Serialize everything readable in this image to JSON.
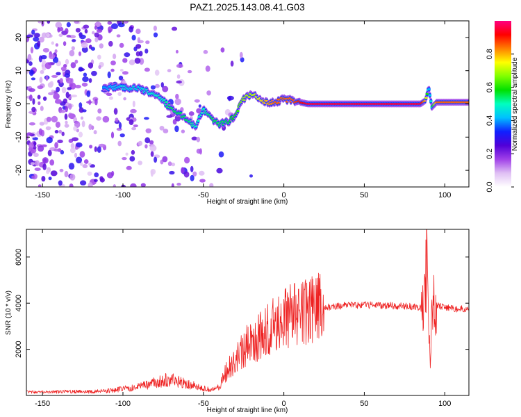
{
  "title": "PAZ1.2025.143.08.41.G03",
  "chart_data": [
    {
      "type": "heatmap",
      "xlabel": "Height of straight line (km)",
      "ylabel": "Frequency (Hz)",
      "xlim": [
        -160,
        115
      ],
      "ylim": [
        -25,
        25
      ],
      "xticks": [
        -150,
        -100,
        -50,
        0,
        50,
        100
      ],
      "yticks": [
        -20,
        -10,
        0,
        10,
        20
      ],
      "colorbar": {
        "label": "Normalized spectral amplitude",
        "range": [
          0,
          1
        ],
        "ticks": [
          0.0,
          0.2,
          0.4,
          0.6,
          0.8
        ],
        "colormap": [
          "#ffffff",
          "#e0c0f4",
          "#a040e8",
          "#5000d8",
          "#1020ff",
          "#00c0ff",
          "#00ffc0",
          "#00e000",
          "#80ff00",
          "#ffff00",
          "#ff8000",
          "#ff0000",
          "#ff0080"
        ]
      },
      "ridge": {
        "x": [
          -110,
          -100,
          -90,
          -80,
          -75,
          -70,
          -65,
          -60,
          -55,
          -50,
          -45,
          -40,
          -35,
          -30,
          -27,
          -24,
          -20,
          -15,
          -10,
          -5,
          0,
          5,
          10,
          15,
          20,
          50,
          85,
          88,
          90,
          92,
          95,
          115
        ],
        "y": [
          5,
          5,
          4.5,
          3,
          1,
          -1.5,
          -3,
          -4.5,
          -7,
          -1.5,
          -4.5,
          -6,
          -5.5,
          -3.5,
          0.5,
          2,
          3,
          1.5,
          0.5,
          0.5,
          1.5,
          1,
          0.5,
          0,
          0,
          0,
          0,
          1,
          5,
          -1,
          0.5,
          0.5
        ],
        "amplitude": [
          0.4,
          0.45,
          0.45,
          0.5,
          0.5,
          0.55,
          0.55,
          0.55,
          0.5,
          0.5,
          0.55,
          0.55,
          0.55,
          0.6,
          0.65,
          0.7,
          0.7,
          0.75,
          0.8,
          0.85,
          0.85,
          0.85,
          0.9,
          0.95,
          0.95,
          0.95,
          0.95,
          0.8,
          0.4,
          0.5,
          0.85,
          0.85
        ]
      }
    },
    {
      "type": "line",
      "xlabel": "Height of straight line (km)",
      "ylabel": "SNR (10 * v/v)",
      "xlim": [
        -160,
        115
      ],
      "ylim": [
        0,
        7200
      ],
      "xticks": [
        -150,
        -100,
        -50,
        0,
        50,
        100
      ],
      "yticks": [
        2000,
        4000,
        6000
      ],
      "series": [
        {
          "color": "#ee2222",
          "x": [
            -160,
            -150,
            -140,
            -130,
            -120,
            -110,
            -100,
            -90,
            -80,
            -75,
            -70,
            -65,
            -60,
            -55,
            -50,
            -45,
            -40,
            -38,
            -36,
            -34,
            -32,
            -30,
            -28,
            -26,
            -24,
            -22,
            -20,
            -18,
            -16,
            -14,
            -12,
            -10,
            -8,
            -6,
            -4,
            -2,
            0,
            5,
            10,
            15,
            20,
            25,
            30,
            35,
            40,
            50,
            60,
            70,
            80,
            85,
            87,
            88,
            89,
            90,
            91,
            92,
            93,
            95,
            100,
            110,
            115
          ],
          "y": [
            150,
            140,
            160,
            170,
            160,
            200,
            280,
            380,
            550,
            650,
            700,
            600,
            520,
            400,
            300,
            250,
            350,
            700,
            1000,
            1200,
            1400,
            1600,
            1800,
            2000,
            2100,
            2200,
            2300,
            2400,
            2500,
            2600,
            2700,
            2800,
            2900,
            3000,
            3100,
            3200,
            3300,
            3450,
            3550,
            3650,
            3750,
            3800,
            3850,
            3880,
            3900,
            3920,
            3900,
            3880,
            3850,
            3800,
            3900,
            4500,
            6500,
            3000,
            1200,
            3500,
            4200,
            3900,
            3800,
            3750,
            3720
          ]
        }
      ]
    }
  ]
}
